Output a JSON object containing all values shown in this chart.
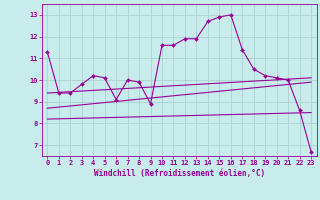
{
  "xlabel": "Windchill (Refroidissement éolien,°C)",
  "background_color": "#c8ecec",
  "grid_color": "#b0d0d0",
  "line_color": "#990099",
  "xlim": [
    -0.5,
    23.5
  ],
  "ylim": [
    6.5,
    13.5
  ],
  "yticks": [
    7,
    8,
    9,
    10,
    11,
    12,
    13
  ],
  "xticks": [
    0,
    1,
    2,
    3,
    4,
    5,
    6,
    7,
    8,
    9,
    10,
    11,
    12,
    13,
    14,
    15,
    16,
    17,
    18,
    19,
    20,
    21,
    22,
    23
  ],
  "series": [
    {
      "x": [
        0,
        1,
        2,
        3,
        4,
        5,
        6,
        7,
        8,
        9,
        10,
        11,
        12,
        13,
        14,
        15,
        16,
        17,
        18,
        19,
        20,
        21,
        22,
        23
      ],
      "y": [
        11.3,
        9.4,
        9.4,
        9.8,
        10.2,
        10.1,
        9.1,
        10.0,
        9.9,
        8.9,
        11.6,
        11.6,
        11.9,
        11.9,
        12.7,
        12.9,
        13.0,
        11.4,
        10.5,
        10.2,
        10.1,
        10.0,
        8.6,
        6.7
      ],
      "marker": true
    },
    {
      "x": [
        0,
        23
      ],
      "y": [
        9.4,
        10.1
      ],
      "marker": false
    },
    {
      "x": [
        0,
        23
      ],
      "y": [
        8.7,
        9.9
      ],
      "marker": false
    },
    {
      "x": [
        0,
        23
      ],
      "y": [
        8.2,
        8.5
      ],
      "marker": false
    }
  ],
  "tick_fontsize": 5.0,
  "xlabel_fontsize": 5.5
}
